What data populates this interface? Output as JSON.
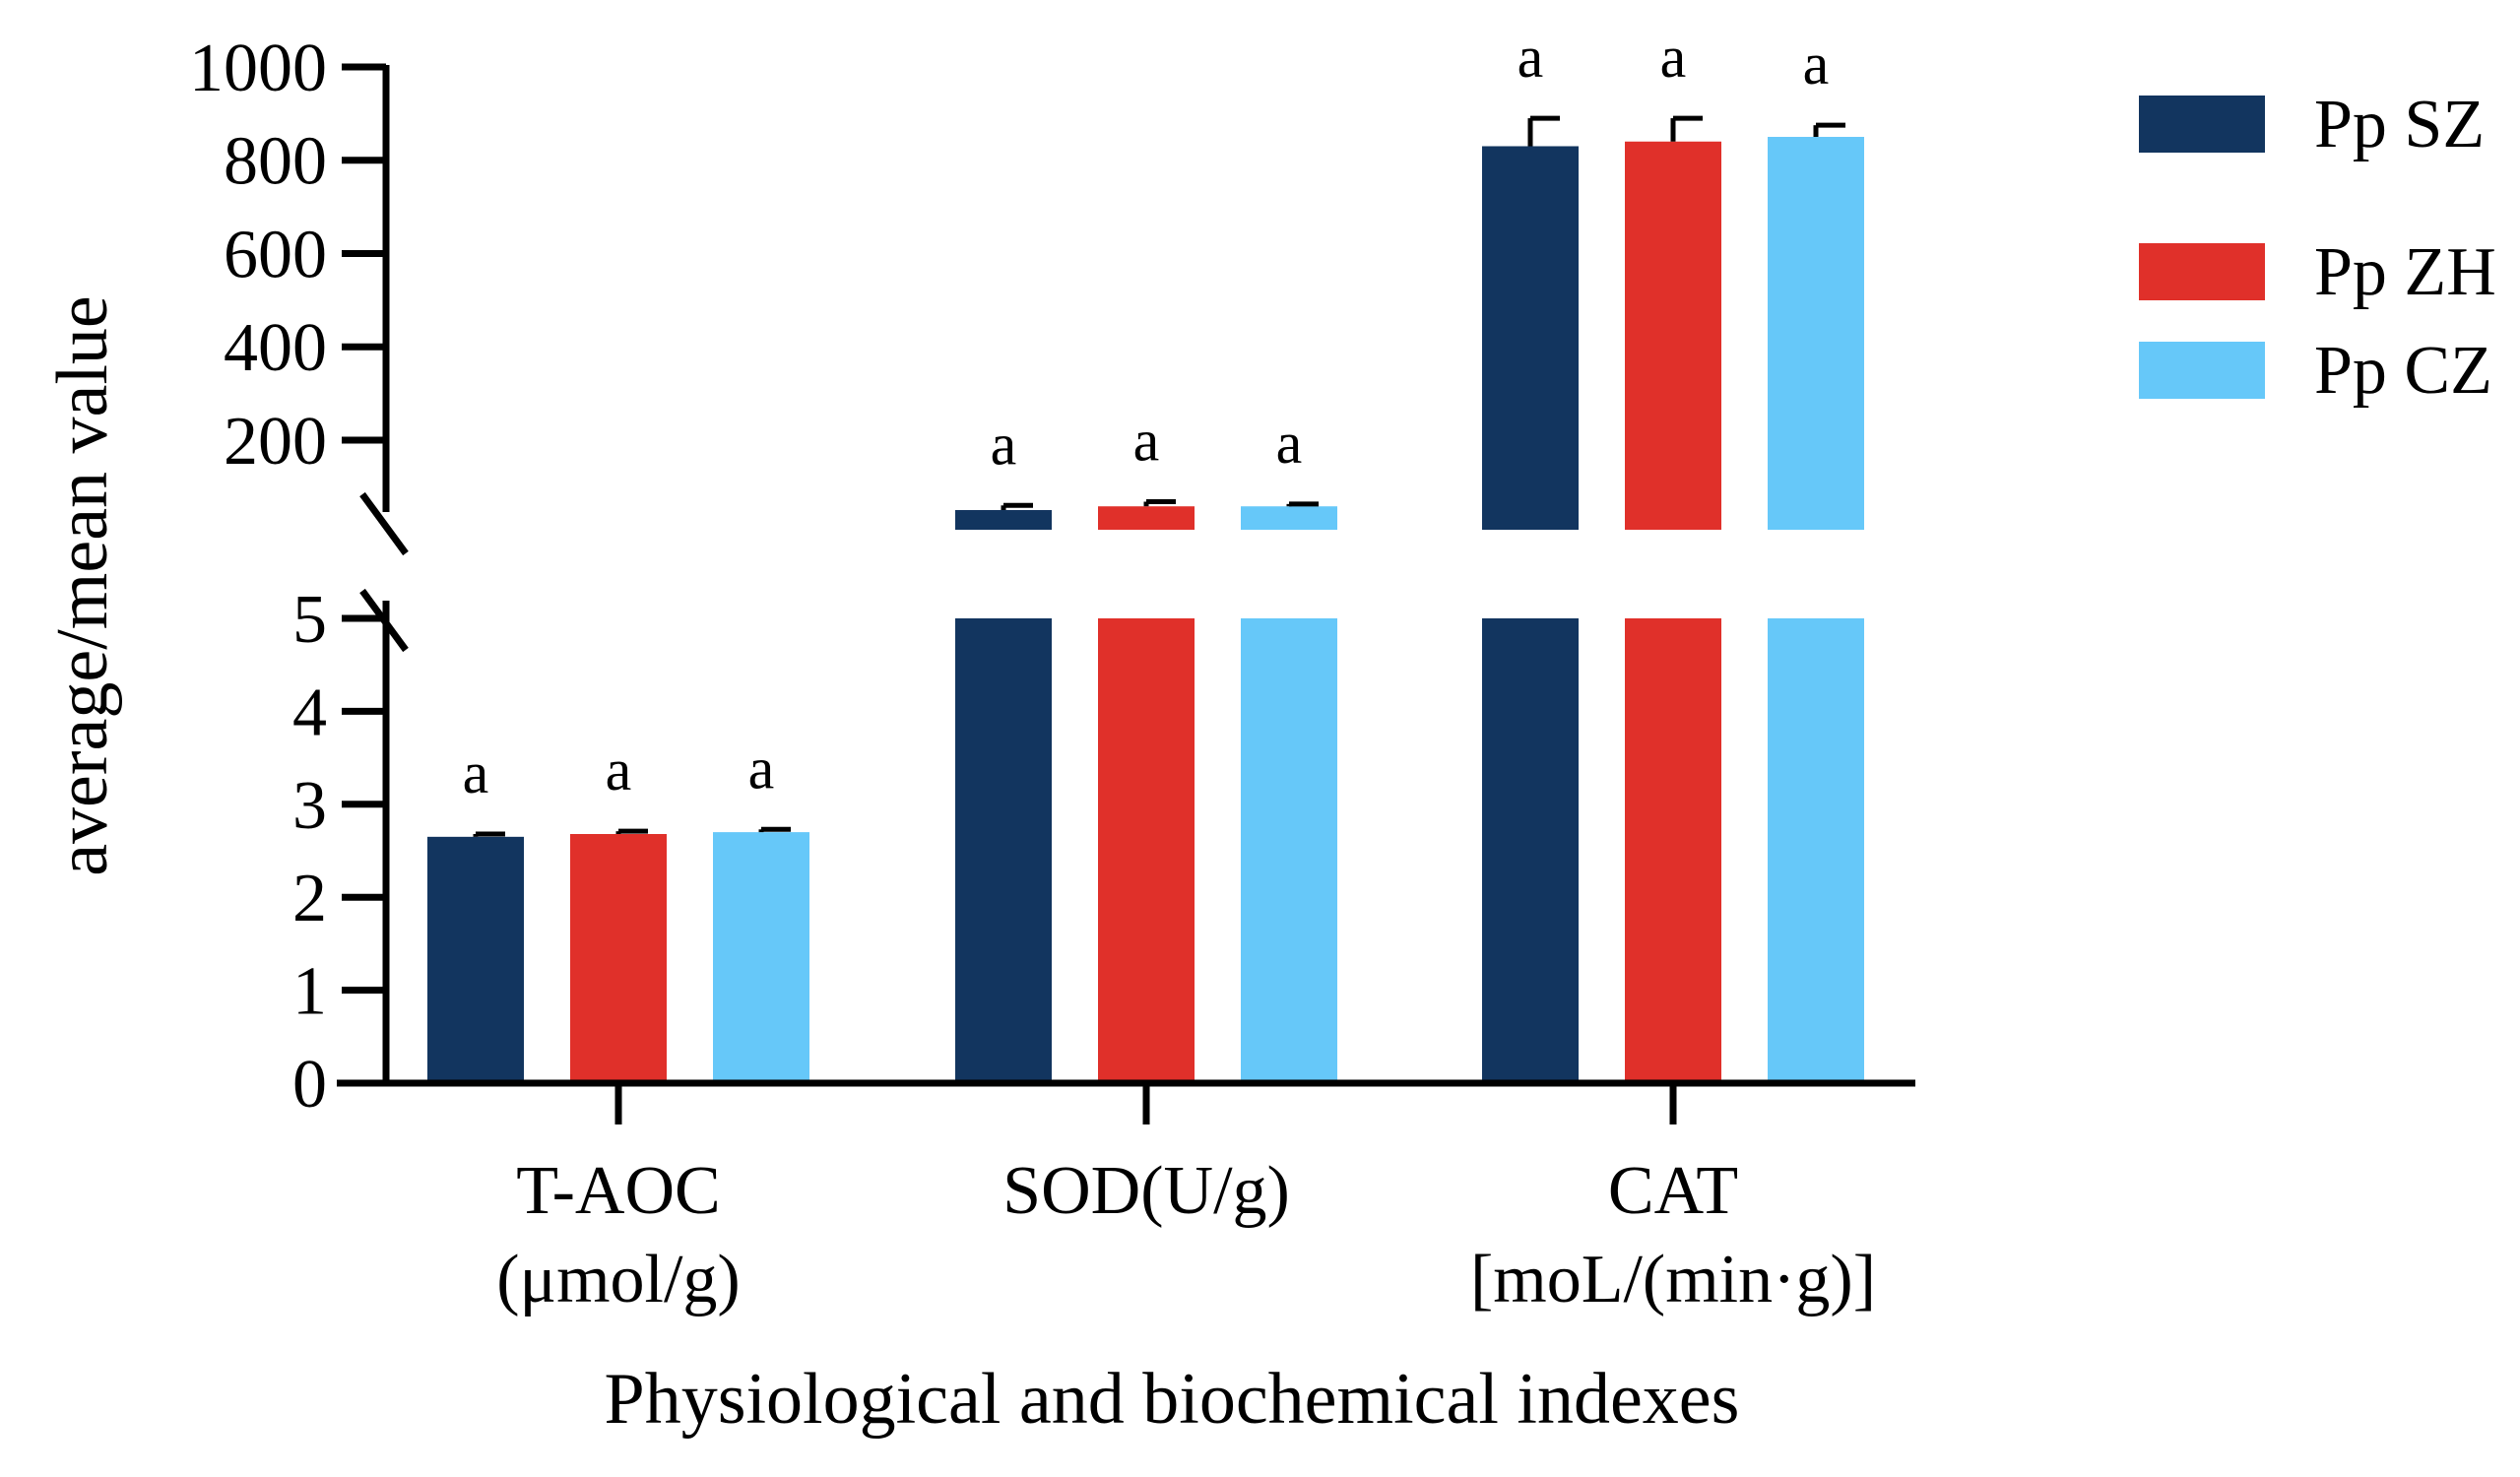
{
  "chart_data": {
    "type": "bar",
    "subtype": "grouped-broken-axis",
    "categories": [
      "T-AOC\n(μmol/g)",
      "SOD(U/g)",
      "CAT\n[moL/(min·g)]"
    ],
    "series": [
      {
        "name": "Pp SZ",
        "color": "#12355f",
        "values": [
          2.65,
          50,
          830
        ],
        "errors": [
          0.03,
          10,
          60
        ]
      },
      {
        "name": "Pp ZH",
        "color": "#e0302a",
        "values": [
          2.68,
          58,
          840
        ],
        "errors": [
          0.03,
          10,
          50
        ]
      },
      {
        "name": "Pp CZ",
        "color": "#66c8f9",
        "values": [
          2.7,
          58,
          850
        ],
        "errors": [
          0.03,
          5,
          25
        ]
      }
    ],
    "significance": [
      [
        "a",
        "a",
        "a"
      ],
      [
        "a",
        "a",
        "a"
      ],
      [
        "a",
        "a",
        "a"
      ]
    ],
    "xlabel": "Physiological and biochemical indexes",
    "ylabel": "average/mean value",
    "lower_axis": {
      "range": [
        0,
        5
      ],
      "ticks": [
        "0",
        "1",
        "2",
        "3",
        "4",
        "5"
      ]
    },
    "upper_axis": {
      "range": [
        5,
        1000
      ],
      "ticks": [
        "200",
        "400",
        "600",
        "800",
        "1000"
      ]
    },
    "legend_position": "right"
  }
}
